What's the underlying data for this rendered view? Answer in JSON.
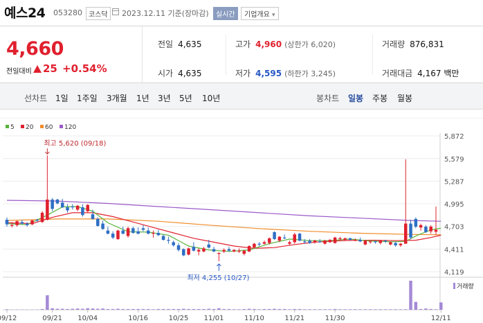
{
  "header": {
    "name": "예스24",
    "code": "053280",
    "market": "코스닥",
    "date": "2023.12.11 기준(장마감)",
    "realtime_label": "실시간",
    "overview_label": "기업개요",
    "overview_arrow": "▾"
  },
  "quote": {
    "price": "4,660",
    "change_label": "전일대비",
    "change": "25",
    "change_pct": "+0.54%",
    "prev_close_label": "전일",
    "prev_close": "4,635",
    "high_label": "고가",
    "high": "4,960",
    "upper_limit": "(상한가 6,020)",
    "volume_label": "거래량",
    "volume": "876,831",
    "open_label": "시가",
    "open": "4,635",
    "low_label": "저가",
    "low": "4,595",
    "lower_limit": "(하한가 3,245)",
    "amount_label": "거래대금",
    "amount": "4,167 백만"
  },
  "toolbar": {
    "line_label": "선차트",
    "periods": [
      "1일",
      "1주일",
      "3개월",
      "1년",
      "3년",
      "5년",
      "10년"
    ],
    "candle_label": "봉차트",
    "candles": [
      "일봉",
      "주봉",
      "월봉"
    ],
    "active_candle": "일봉"
  },
  "colors": {
    "up": "#e0202e",
    "down": "#2f6fc4",
    "ma5": "#57b33c",
    "ma20": "#e0202e",
    "ma60": "#f08c2a",
    "ma120": "#9b59c9",
    "volume": "#a58ad6"
  },
  "chart_data": {
    "type": "candlestick",
    "ylim": [
      4119,
      5872
    ],
    "y_ticks": [
      "5,872",
      "5,579",
      "5,287",
      "4,995",
      "4,703",
      "4,411",
      "4,119"
    ],
    "x_ticks": [
      "09/12",
      "09/21",
      "10/04",
      "10/16",
      "10/25",
      "11/01",
      "11/10",
      "11/21",
      "11/30",
      "12/11"
    ],
    "legend": [
      {
        "name": "5",
        "color": "#57b33c"
      },
      {
        "name": "20",
        "color": "#e0202e"
      },
      {
        "name": "60",
        "color": "#f08c2a"
      },
      {
        "name": "120",
        "color": "#9b59c9"
      }
    ],
    "volume_label": "거래량",
    "high_annotation": "최고 5,620 (09/18)",
    "low_annotation": "최저 4,255 (10/27)",
    "candles": [
      {
        "o": 4790,
        "h": 4820,
        "l": 4700,
        "c": 4730
      },
      {
        "o": 4720,
        "h": 4760,
        "l": 4690,
        "c": 4720
      },
      {
        "o": 4720,
        "h": 4780,
        "l": 4700,
        "c": 4770
      },
      {
        "o": 4760,
        "h": 4790,
        "l": 4730,
        "c": 4740
      },
      {
        "o": 4740,
        "h": 4760,
        "l": 4700,
        "c": 4720
      },
      {
        "o": 4730,
        "h": 4790,
        "l": 4720,
        "c": 4780
      },
      {
        "o": 4790,
        "h": 4800,
        "l": 4760,
        "c": 4780
      },
      {
        "o": 4760,
        "h": 4900,
        "l": 4750,
        "c": 4880
      },
      {
        "o": 4790,
        "h": 5620,
        "l": 4780,
        "c": 5050
      },
      {
        "o": 5050,
        "h": 5070,
        "l": 4900,
        "c": 4930
      },
      {
        "o": 5050,
        "h": 5060,
        "l": 4990,
        "c": 5000
      },
      {
        "o": 5010,
        "h": 5060,
        "l": 4940,
        "c": 4950
      },
      {
        "o": 4950,
        "h": 4990,
        "l": 4880,
        "c": 4910
      },
      {
        "o": 4960,
        "h": 4990,
        "l": 4920,
        "c": 4950
      },
      {
        "o": 4920,
        "h": 4980,
        "l": 4900,
        "c": 4970
      },
      {
        "o": 4950,
        "h": 4990,
        "l": 4830,
        "c": 4850
      },
      {
        "o": 4900,
        "h": 4990,
        "l": 4880,
        "c": 4980
      },
      {
        "o": 4860,
        "h": 4920,
        "l": 4790,
        "c": 4800
      },
      {
        "o": 4800,
        "h": 4820,
        "l": 4700,
        "c": 4710
      },
      {
        "o": 4740,
        "h": 4780,
        "l": 4660,
        "c": 4670
      },
      {
        "o": 4650,
        "h": 4700,
        "l": 4600,
        "c": 4610
      },
      {
        "o": 4610,
        "h": 4640,
        "l": 4540,
        "c": 4560
      },
      {
        "o": 4540,
        "h": 4660,
        "l": 4530,
        "c": 4650
      },
      {
        "o": 4650,
        "h": 4700,
        "l": 4600,
        "c": 4610
      },
      {
        "o": 4580,
        "h": 4700,
        "l": 4560,
        "c": 4680
      },
      {
        "o": 4680,
        "h": 4700,
        "l": 4610,
        "c": 4620
      },
      {
        "o": 4640,
        "h": 4690,
        "l": 4600,
        "c": 4610
      },
      {
        "o": 4680,
        "h": 4720,
        "l": 4640,
        "c": 4660
      },
      {
        "o": 4650,
        "h": 4690,
        "l": 4600,
        "c": 4610
      },
      {
        "o": 4610,
        "h": 4650,
        "l": 4560,
        "c": 4620
      },
      {
        "o": 4620,
        "h": 4660,
        "l": 4580,
        "c": 4590
      },
      {
        "o": 4580,
        "h": 4600,
        "l": 4520,
        "c": 4530
      },
      {
        "o": 4530,
        "h": 4570,
        "l": 4480,
        "c": 4520
      },
      {
        "o": 4500,
        "h": 4520,
        "l": 4440,
        "c": 4460
      },
      {
        "o": 4460,
        "h": 4490,
        "l": 4380,
        "c": 4400
      },
      {
        "o": 4410,
        "h": 4420,
        "l": 4320,
        "c": 4330
      },
      {
        "o": 4340,
        "h": 4430,
        "l": 4330,
        "c": 4420
      },
      {
        "o": 4440,
        "h": 4500,
        "l": 4380,
        "c": 4390
      },
      {
        "o": 4380,
        "h": 4420,
        "l": 4330,
        "c": 4400
      },
      {
        "o": 4380,
        "h": 4440,
        "l": 4370,
        "c": 4420
      },
      {
        "o": 4470,
        "h": 4530,
        "l": 4420,
        "c": 4430
      },
      {
        "o": 4410,
        "h": 4440,
        "l": 4370,
        "c": 4380
      },
      {
        "o": 4350,
        "h": 4370,
        "l": 4255,
        "c": 4360
      },
      {
        "o": 4380,
        "h": 4420,
        "l": 4360,
        "c": 4400
      },
      {
        "o": 4410,
        "h": 4440,
        "l": 4380,
        "c": 4390
      },
      {
        "o": 4380,
        "h": 4410,
        "l": 4370,
        "c": 4400
      },
      {
        "o": 4380,
        "h": 4420,
        "l": 4360,
        "c": 4390
      },
      {
        "o": 4350,
        "h": 4400,
        "l": 4330,
        "c": 4390
      },
      {
        "o": 4380,
        "h": 4460,
        "l": 4370,
        "c": 4450
      },
      {
        "o": 4430,
        "h": 4490,
        "l": 4420,
        "c": 4480
      },
      {
        "o": 4480,
        "h": 4500,
        "l": 4450,
        "c": 4470
      },
      {
        "o": 4480,
        "h": 4520,
        "l": 4470,
        "c": 4500
      },
      {
        "o": 4490,
        "h": 4560,
        "l": 4470,
        "c": 4550
      },
      {
        "o": 4630,
        "h": 4640,
        "l": 4530,
        "c": 4540
      },
      {
        "o": 4520,
        "h": 4580,
        "l": 4500,
        "c": 4570
      },
      {
        "o": 4560,
        "h": 4600,
        "l": 4540,
        "c": 4550
      },
      {
        "o": 4480,
        "h": 4520,
        "l": 4460,
        "c": 4500
      },
      {
        "o": 4500,
        "h": 4620,
        "l": 4480,
        "c": 4600
      },
      {
        "o": 4610,
        "h": 4620,
        "l": 4510,
        "c": 4520
      },
      {
        "o": 4510,
        "h": 4540,
        "l": 4480,
        "c": 4500
      },
      {
        "o": 4520,
        "h": 4540,
        "l": 4480,
        "c": 4490
      },
      {
        "o": 4500,
        "h": 4530,
        "l": 4480,
        "c": 4520
      },
      {
        "o": 4510,
        "h": 4540,
        "l": 4490,
        "c": 4500
      },
      {
        "o": 4480,
        "h": 4530,
        "l": 4470,
        "c": 4520
      },
      {
        "o": 4500,
        "h": 4540,
        "l": 4490,
        "c": 4530
      },
      {
        "o": 4490,
        "h": 4570,
        "l": 4480,
        "c": 4560
      },
      {
        "o": 4540,
        "h": 4570,
        "l": 4520,
        "c": 4550
      },
      {
        "o": 4530,
        "h": 4560,
        "l": 4520,
        "c": 4550
      },
      {
        "o": 4550,
        "h": 4560,
        "l": 4520,
        "c": 4530
      },
      {
        "o": 4520,
        "h": 4550,
        "l": 4510,
        "c": 4530
      },
      {
        "o": 4530,
        "h": 4560,
        "l": 4500,
        "c": 4510
      },
      {
        "o": 4470,
        "h": 4530,
        "l": 4460,
        "c": 4520
      },
      {
        "o": 4500,
        "h": 4520,
        "l": 4480,
        "c": 4510
      },
      {
        "o": 4510,
        "h": 4520,
        "l": 4480,
        "c": 4500
      },
      {
        "o": 4490,
        "h": 4530,
        "l": 4470,
        "c": 4520
      },
      {
        "o": 4520,
        "h": 4530,
        "l": 4490,
        "c": 4510
      },
      {
        "o": 4470,
        "h": 4510,
        "l": 4460,
        "c": 4500
      },
      {
        "o": 4490,
        "h": 4500,
        "l": 4440,
        "c": 4460
      },
      {
        "o": 4460,
        "h": 4490,
        "l": 4440,
        "c": 4480
      },
      {
        "o": 4480,
        "h": 5570,
        "l": 4480,
        "c": 4740
      },
      {
        "o": 4740,
        "h": 4790,
        "l": 4540,
        "c": 4560
      },
      {
        "o": 4800,
        "h": 4820,
        "l": 4680,
        "c": 4700
      },
      {
        "o": 4690,
        "h": 4740,
        "l": 4650,
        "c": 4720
      },
      {
        "o": 4700,
        "h": 4720,
        "l": 4620,
        "c": 4630
      },
      {
        "o": 4640,
        "h": 4720,
        "l": 4610,
        "c": 4700
      },
      {
        "o": 4635,
        "h": 4960,
        "l": 4595,
        "c": 4660
      }
    ],
    "ma5": [
      [
        0,
        4740
      ],
      [
        4,
        4725
      ],
      [
        8,
        4850
      ],
      [
        11,
        4955
      ],
      [
        14,
        4960
      ],
      [
        17,
        4900
      ],
      [
        20,
        4750
      ],
      [
        24,
        4635
      ],
      [
        28,
        4630
      ],
      [
        32,
        4590
      ],
      [
        36,
        4450
      ],
      [
        40,
        4400
      ],
      [
        44,
        4380
      ],
      [
        48,
        4400
      ],
      [
        52,
        4480
      ],
      [
        56,
        4540
      ],
      [
        60,
        4520
      ],
      [
        64,
        4520
      ],
      [
        68,
        4540
      ],
      [
        72,
        4515
      ],
      [
        76,
        4505
      ],
      [
        79,
        4510
      ],
      [
        81,
        4580
      ],
      [
        84,
        4660
      ],
      [
        86,
        4680
      ]
    ],
    "ma20": [
      [
        0,
        4750
      ],
      [
        5,
        4740
      ],
      [
        9,
        4820
      ],
      [
        13,
        4880
      ],
      [
        17,
        4880
      ],
      [
        21,
        4830
      ],
      [
        25,
        4760
      ],
      [
        29,
        4690
      ],
      [
        33,
        4620
      ],
      [
        37,
        4550
      ],
      [
        41,
        4500
      ],
      [
        45,
        4450
      ],
      [
        49,
        4420
      ],
      [
        53,
        4430
      ],
      [
        57,
        4470
      ],
      [
        61,
        4500
      ],
      [
        65,
        4515
      ],
      [
        69,
        4525
      ],
      [
        73,
        4525
      ],
      [
        77,
        4520
      ],
      [
        81,
        4525
      ],
      [
        84,
        4560
      ],
      [
        86,
        4590
      ]
    ],
    "ma60": [
      [
        0,
        4780
      ],
      [
        10,
        4800
      ],
      [
        20,
        4800
      ],
      [
        30,
        4770
      ],
      [
        40,
        4720
      ],
      [
        50,
        4675
      ],
      [
        60,
        4640
      ],
      [
        70,
        4615
      ],
      [
        80,
        4600
      ],
      [
        86,
        4595
      ]
    ],
    "ma120": [
      [
        0,
        5040
      ],
      [
        10,
        5030
      ],
      [
        20,
        5000
      ],
      [
        30,
        4960
      ],
      [
        40,
        4920
      ],
      [
        50,
        4880
      ],
      [
        60,
        4840
      ],
      [
        70,
        4810
      ],
      [
        80,
        4780
      ],
      [
        86,
        4770
      ]
    ],
    "volume": [
      2,
      1,
      1,
      1,
      1,
      1,
      1,
      3,
      55,
      6,
      4,
      4,
      3,
      4,
      5,
      4,
      6,
      5,
      4,
      5,
      3,
      3,
      4,
      3,
      3,
      3,
      3,
      3,
      3,
      2,
      3,
      3,
      3,
      3,
      3,
      4,
      3,
      3,
      3,
      3,
      4,
      3,
      6,
      3,
      3,
      2,
      2,
      3,
      4,
      3,
      2,
      3,
      3,
      4,
      3,
      3,
      2,
      3,
      3,
      2,
      2,
      2,
      2,
      2,
      2,
      3,
      2,
      2,
      2,
      2,
      2,
      2,
      2,
      2,
      2,
      2,
      2,
      2,
      2,
      2,
      110,
      30,
      3,
      5,
      3,
      2,
      28
    ]
  }
}
